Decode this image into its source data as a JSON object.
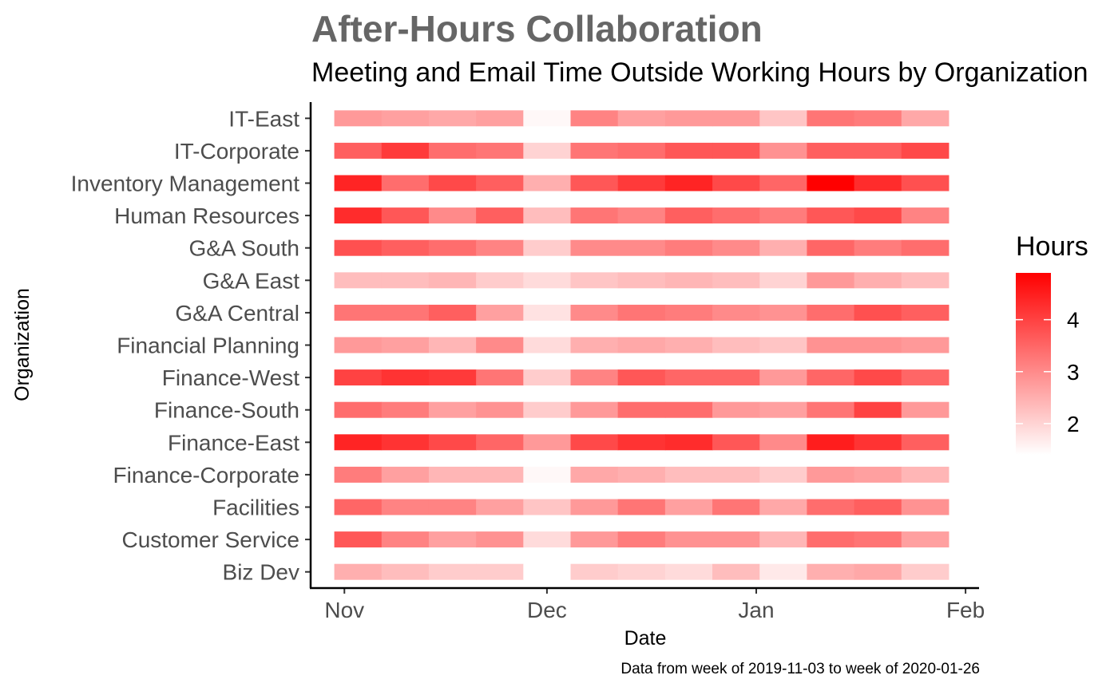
{
  "chart_data": {
    "type": "heatmap",
    "title": "After-Hours Collaboration",
    "subtitle": "Meeting and Email Time Outside Working Hours by Organization",
    "xlabel": "Date",
    "ylabel": "Organization",
    "caption": "Data from week of 2019-11-03 to week of 2020-01-26",
    "legend_title": "Hours",
    "legend_ticks": [
      2,
      3,
      4
    ],
    "color_low": "#ffffff",
    "color_high": "#ff0000",
    "color_range": [
      1.4,
      4.9
    ],
    "xlim": [
      "2019-10-27",
      "2020-02-03"
    ],
    "x_ticks": [
      {
        "label": "Nov",
        "date": "2019-11-01"
      },
      {
        "label": "Dec",
        "date": "2019-12-01"
      },
      {
        "label": "Jan",
        "date": "2020-01-01"
      },
      {
        "label": "Feb",
        "date": "2020-02-01"
      }
    ],
    "weeks": [
      "2019-11-03",
      "2019-11-10",
      "2019-11-17",
      "2019-11-24",
      "2019-12-01",
      "2019-12-08",
      "2019-12-15",
      "2019-12-22",
      "2019-12-29",
      "2020-01-05",
      "2020-01-12",
      "2020-01-19",
      "2020-01-26"
    ],
    "organizations": [
      "Biz Dev",
      "Customer Service",
      "Facilities",
      "Finance-Corporate",
      "Finance-East",
      "Finance-South",
      "Finance-West",
      "Financial Planning",
      "G&A Central",
      "G&A East",
      "G&A South",
      "Human Resources",
      "Inventory Management",
      "IT-Corporate",
      "IT-East"
    ],
    "values": [
      [
        2.5,
        2.3,
        2.1,
        2.1,
        1.4,
        2.1,
        2.0,
        1.9,
        2.3,
        1.7,
        2.5,
        2.6,
        2.1
      ],
      [
        3.7,
        3.1,
        2.7,
        2.9,
        1.9,
        2.8,
        3.2,
        2.9,
        2.9,
        2.4,
        3.4,
        3.3,
        2.7
      ],
      [
        3.5,
        3.1,
        3.1,
        2.7,
        2.2,
        2.8,
        3.3,
        2.7,
        3.3,
        2.6,
        3.4,
        3.6,
        2.9
      ],
      [
        3.2,
        2.7,
        2.4,
        2.4,
        1.5,
        2.6,
        2.5,
        2.3,
        2.3,
        2.1,
        2.8,
        2.7,
        2.4
      ],
      [
        4.4,
        4.2,
        3.9,
        3.5,
        2.8,
        3.9,
        4.2,
        4.3,
        3.7,
        3.0,
        4.5,
        4.2,
        3.6
      ],
      [
        3.4,
        3.2,
        2.7,
        2.9,
        2.1,
        2.8,
        3.4,
        3.4,
        2.8,
        2.7,
        3.3,
        4.0,
        2.8
      ],
      [
        4.0,
        4.2,
        4.1,
        3.3,
        2.1,
        3.1,
        3.7,
        3.5,
        3.5,
        2.8,
        3.5,
        3.9,
        3.5
      ],
      [
        2.8,
        2.7,
        2.4,
        3.0,
        1.9,
        2.5,
        2.6,
        2.5,
        2.3,
        2.2,
        2.9,
        2.9,
        2.8
      ],
      [
        3.3,
        3.3,
        3.6,
        2.7,
        1.8,
        3.0,
        3.3,
        3.2,
        3.0,
        2.9,
        3.4,
        3.8,
        3.6
      ],
      [
        2.3,
        2.3,
        2.4,
        2.1,
        1.9,
        2.2,
        2.3,
        2.4,
        2.3,
        2.0,
        2.8,
        2.5,
        2.3
      ],
      [
        3.8,
        3.6,
        3.4,
        3.1,
        2.1,
        3.0,
        3.0,
        3.2,
        3.0,
        2.5,
        3.5,
        3.2,
        3.4
      ],
      [
        4.3,
        3.7,
        3.0,
        3.6,
        2.3,
        3.3,
        3.1,
        3.6,
        3.4,
        3.2,
        3.7,
        3.9,
        3.1
      ],
      [
        4.4,
        3.4,
        3.9,
        3.6,
        2.5,
        3.7,
        4.1,
        4.4,
        3.9,
        3.5,
        4.9,
        4.3,
        3.8
      ],
      [
        3.6,
        4.1,
        3.4,
        3.3,
        2.0,
        3.3,
        3.4,
        3.7,
        3.7,
        2.9,
        3.6,
        3.6,
        3.9
      ],
      [
        2.8,
        2.7,
        2.6,
        2.7,
        1.5,
        3.1,
        2.7,
        2.8,
        2.8,
        2.2,
        3.3,
        3.2,
        2.6
      ]
    ]
  }
}
